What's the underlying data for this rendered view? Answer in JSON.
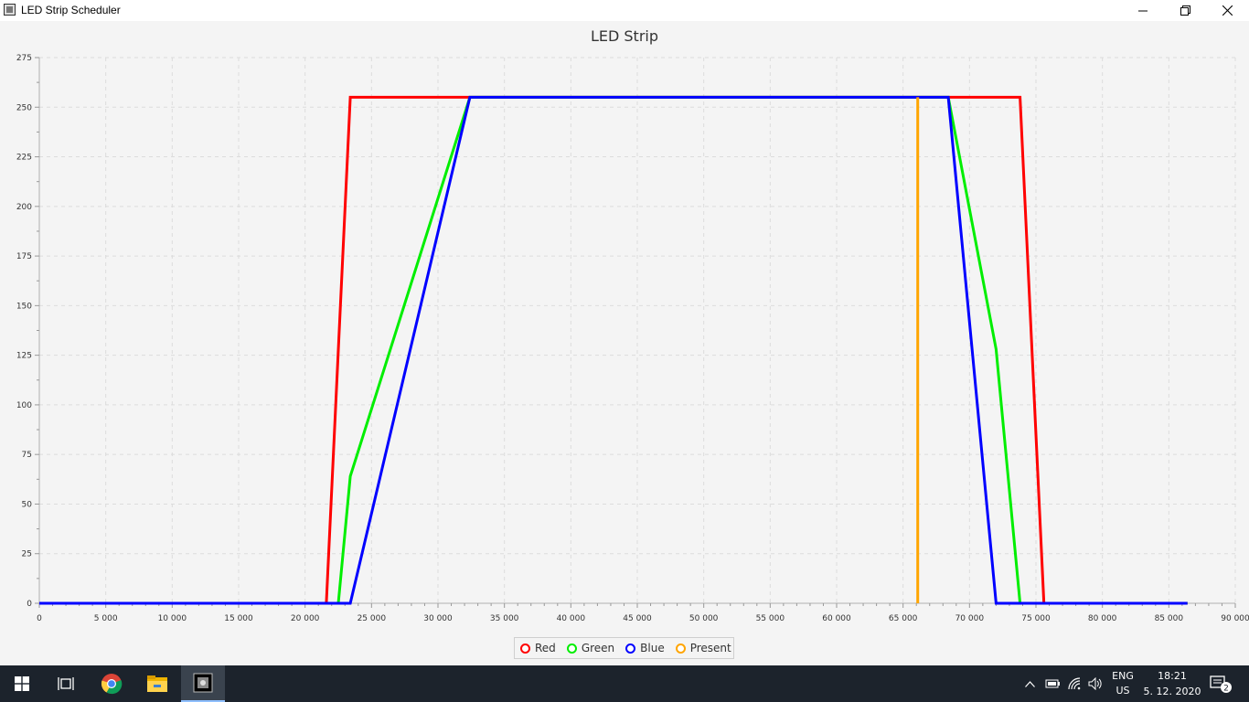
{
  "window": {
    "title": "LED Strip Scheduler",
    "minimize_icon": "minimize-icon",
    "maximize_icon": "restore-icon",
    "close_icon": "close-icon"
  },
  "chart_data": {
    "type": "line",
    "title": "LED Strip",
    "xlabel": "",
    "ylabel": "",
    "xlim": [
      0,
      90000
    ],
    "ylim": [
      0,
      275
    ],
    "x_ticks": [
      0,
      5000,
      10000,
      15000,
      20000,
      25000,
      30000,
      35000,
      40000,
      45000,
      50000,
      55000,
      60000,
      65000,
      70000,
      75000,
      80000,
      85000,
      90000
    ],
    "x_tick_labels": [
      "0",
      "5 000",
      "10 000",
      "15 000",
      "20 000",
      "25 000",
      "30 000",
      "35 000",
      "40 000",
      "45 000",
      "50 000",
      "55 000",
      "60 000",
      "65 000",
      "70 000",
      "75 000",
      "80 000",
      "85 000",
      "90 000"
    ],
    "y_ticks": [
      0,
      25,
      50,
      75,
      100,
      125,
      150,
      175,
      200,
      225,
      250,
      275
    ],
    "y_tick_labels": [
      "0",
      "25",
      "50",
      "75",
      "100",
      "125",
      "150",
      "175",
      "200",
      "225",
      "250",
      "275"
    ],
    "grid": true,
    "legend_position": "bottom",
    "series": [
      {
        "name": "Red",
        "color": "#ff0000",
        "points": [
          [
            0,
            0
          ],
          [
            21600,
            0
          ],
          [
            23400,
            255
          ],
          [
            68400,
            255
          ],
          [
            73800,
            255
          ],
          [
            75600,
            0
          ],
          [
            86400,
            0
          ]
        ]
      },
      {
        "name": "Green",
        "color": "#00ee00",
        "points": [
          [
            0,
            0
          ],
          [
            22500,
            0
          ],
          [
            23400,
            64
          ],
          [
            32400,
            255
          ],
          [
            68400,
            255
          ],
          [
            72000,
            128
          ],
          [
            73800,
            0
          ],
          [
            86400,
            0
          ]
        ]
      },
      {
        "name": "Blue",
        "color": "#0000ff",
        "points": [
          [
            0,
            0
          ],
          [
            23400,
            0
          ],
          [
            32400,
            255
          ],
          [
            68400,
            255
          ],
          [
            72000,
            0
          ],
          [
            86400,
            0
          ]
        ]
      },
      {
        "name": "Present",
        "color": "#ffa500",
        "points": [
          [
            66100,
            0
          ],
          [
            66100,
            255
          ]
        ]
      }
    ]
  },
  "taskbar": {
    "start_icon": "windows-start-icon",
    "taskview_icon": "task-view-icon",
    "chrome_icon": "chrome-icon",
    "explorer_icon": "file-explorer-icon",
    "app_icon": "led-scheduler-app-icon",
    "tray": {
      "chevron": "^",
      "lang_top": "ENG",
      "lang_bottom": "US",
      "time": "18:21",
      "date": "5. 12. 2020",
      "notification_count": "2"
    }
  }
}
